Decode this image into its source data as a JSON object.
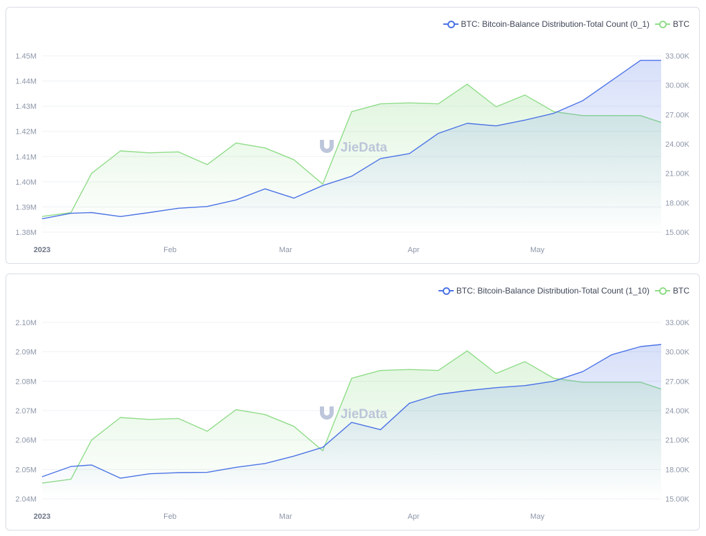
{
  "colors": {
    "blue": "#4a72e6",
    "green": "#8fdc88",
    "grid": "#edf0f5",
    "axis_text": "#8d96a8"
  },
  "watermark": {
    "text": "JieData",
    "icon": "jiedata-logo-icon"
  },
  "charts": [
    {
      "legend": {
        "series1": "BTC: Bitcoin-Balance Distribution-Total Count (0_1)",
        "series2": "BTC"
      },
      "y_left_ticks": [
        "1.45M",
        "1.44M",
        "1.43M",
        "1.42M",
        "1.41M",
        "1.40M",
        "1.39M",
        "1.38M"
      ],
      "y_right_ticks": [
        "33.00K",
        "30.00K",
        "27.00K",
        "24.00K",
        "21.00K",
        "18.00K",
        "15.00K"
      ],
      "x_ticks": [
        "2023",
        "Feb",
        "Mar",
        "Apr",
        "May"
      ]
    },
    {
      "legend": {
        "series1": "BTC: Bitcoin-Balance Distribution-Total Count (1_10)",
        "series2": "BTC"
      },
      "y_left_ticks": [
        "2.10M",
        "2.09M",
        "2.08M",
        "2.07M",
        "2.06M",
        "2.05M",
        "2.04M"
      ],
      "y_right_ticks": [
        "33.00K",
        "30.00K",
        "27.00K",
        "24.00K",
        "21.00K",
        "18.00K",
        "15.00K"
      ],
      "x_ticks": [
        "2023",
        "Feb",
        "Mar",
        "Apr",
        "May"
      ]
    }
  ],
  "chart_data": [
    {
      "type": "line",
      "x_axis": "date",
      "x": [
        "2023-01-01",
        "2023-01-08",
        "2023-01-13",
        "2023-01-20",
        "2023-01-27",
        "2023-02-03",
        "2023-02-10",
        "2023-02-17",
        "2023-02-24",
        "2023-03-03",
        "2023-03-10",
        "2023-03-17",
        "2023-03-24",
        "2023-03-31",
        "2023-04-07",
        "2023-04-14",
        "2023-04-21",
        "2023-04-28",
        "2023-05-05",
        "2023-05-12",
        "2023-05-19",
        "2023-05-26",
        "2023-05-31"
      ],
      "xlim": [
        "2023-01-01",
        "2023-05-31"
      ],
      "series": [
        {
          "name": "BTC: Bitcoin-Balance Distribution-Total Count (0_1)",
          "axis": "left",
          "area": true,
          "values": [
            1.3853,
            1.3875,
            1.3878,
            1.3862,
            1.3878,
            1.3895,
            1.3902,
            1.3928,
            1.3972,
            1.3935,
            1.3985,
            1.4022,
            1.4092,
            1.4112,
            1.4192,
            1.4232,
            1.4222,
            1.4245,
            1.4272,
            1.4322,
            1.4402,
            1.4482,
            1.4482
          ]
        },
        {
          "name": "BTC",
          "axis": "right",
          "area": true,
          "values": [
            16600,
            17000,
            21000,
            23300,
            23100,
            23200,
            21900,
            24100,
            23600,
            22400,
            19900,
            27300,
            28100,
            28200,
            28100,
            30100,
            27800,
            29000,
            27300,
            26900,
            26900,
            26900,
            26200
          ]
        }
      ],
      "ylim_left": [
        1.38,
        1.45
      ],
      "ylim_right": [
        15000,
        33000
      ],
      "grid": true,
      "legend": "top-right"
    },
    {
      "type": "line",
      "x_axis": "date",
      "x": [
        "2023-01-01",
        "2023-01-08",
        "2023-01-13",
        "2023-01-20",
        "2023-01-27",
        "2023-02-03",
        "2023-02-10",
        "2023-02-17",
        "2023-02-24",
        "2023-03-03",
        "2023-03-10",
        "2023-03-17",
        "2023-03-24",
        "2023-03-31",
        "2023-04-07",
        "2023-04-14",
        "2023-04-21",
        "2023-04-28",
        "2023-05-05",
        "2023-05-12",
        "2023-05-19",
        "2023-05-26",
        "2023-05-31"
      ],
      "xlim": [
        "2023-01-01",
        "2023-05-31"
      ],
      "series": [
        {
          "name": "BTC: Bitcoin-Balance Distribution-Total Count (1_10)",
          "axis": "left",
          "area": true,
          "values": [
            2.0475,
            2.051,
            2.0515,
            2.047,
            2.0485,
            2.0489,
            2.049,
            2.0507,
            2.052,
            2.0545,
            2.0575,
            2.066,
            2.0635,
            2.0725,
            2.0755,
            2.0768,
            2.0778,
            2.0785,
            2.08,
            2.0833,
            2.089,
            2.0918,
            2.0925
          ]
        },
        {
          "name": "BTC",
          "axis": "right",
          "area": true,
          "values": [
            16600,
            17000,
            21000,
            23300,
            23100,
            23200,
            21900,
            24100,
            23600,
            22400,
            19900,
            27300,
            28100,
            28200,
            28100,
            30100,
            27800,
            29000,
            27300,
            26900,
            26900,
            26900,
            26200
          ]
        }
      ],
      "ylim_left": [
        2.04,
        2.1
      ],
      "ylim_right": [
        15000,
        33000
      ],
      "grid": true,
      "legend": "top-right"
    }
  ]
}
